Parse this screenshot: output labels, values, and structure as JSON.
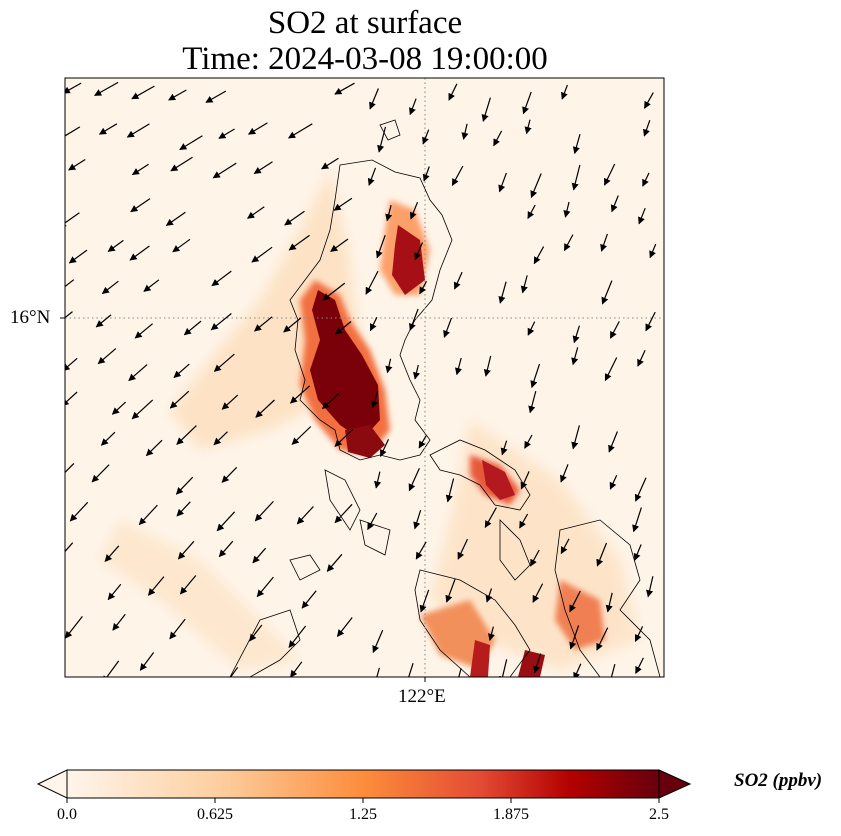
{
  "title": {
    "line1": "SO2 at surface",
    "line2": "Time: 2024-03-08 19:00:00"
  },
  "axes": {
    "lat_label": "16°N",
    "lon_label": "122°E"
  },
  "colorbar": {
    "label": "SO2 (ppbv)",
    "ticks": [
      "0.0",
      "0.625",
      "1.25",
      "1.875",
      "2.5"
    ],
    "colors": [
      "#fff5eb",
      "#fdd0a2",
      "#fd8d3c",
      "#d94801",
      "#a50f15",
      "#67000d"
    ]
  },
  "map": {
    "type": "filled-field-with-wind-vectors",
    "variable": "SO2",
    "colormap": "Oranges-Reds",
    "gridlines": true
  }
}
